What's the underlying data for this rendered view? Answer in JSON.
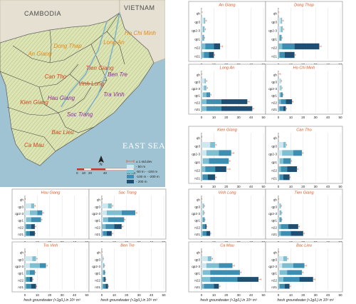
{
  "colors": {
    "depth_50": "#cfe8ef",
    "depth_50_100": "#7fbfd2",
    "depth_100_200": "#3d8eb0",
    "depth_200": "#1e4f72",
    "error_bar": "#e05a2a",
    "title": "#e0531a",
    "province_red": "#d6421f",
    "province_purple": "#8a2a9a",
    "land": "#d8e0b4",
    "sea": "#9fc3d3"
  },
  "map": {
    "countries": [
      "CAMBODIA",
      "VIETNAM"
    ],
    "sea_label": "EAST SEA",
    "north_label": "N",
    "scale": {
      "ticks": [
        "0",
        "10",
        "20",
        "40"
      ],
      "unit_label": "80 km"
    },
    "provinces": [
      {
        "name": "An Giang",
        "color": "orange"
      },
      {
        "name": "Dong Thap",
        "color": "orange"
      },
      {
        "name": "Long An",
        "color": "orange"
      },
      {
        "name": "Ho Chi Minh",
        "color": "orange"
      },
      {
        "name": "Tien Giang",
        "color": "red"
      },
      {
        "name": "Ben Tre",
        "color": "purple"
      },
      {
        "name": "Can Tho",
        "color": "red"
      },
      {
        "name": "Vinh Long",
        "color": "red"
      },
      {
        "name": "Hau Giang",
        "color": "purple"
      },
      {
        "name": "Tra Vinh",
        "color": "purple"
      },
      {
        "name": "Kien Giang",
        "color": "red"
      },
      {
        "name": "Soc Trang",
        "color": "purple"
      },
      {
        "name": "Bac Lieu",
        "color": "red"
      },
      {
        "name": "Ca Mau",
        "color": "red"
      }
    ]
  },
  "legend": {
    "error_label": "± 1 std.dev",
    "items": [
      {
        "label": "- 50 m",
        "color_key": "depth_50"
      },
      {
        "label": "-50 m - -100 m",
        "color_key": "depth_50_100"
      },
      {
        "label": "-100 m - -200 m",
        "color_key": "depth_100_200"
      },
      {
        "label": "- 200 m",
        "color_key": "depth_200"
      }
    ]
  },
  "chart_data": {
    "type": "bar",
    "orientation": "horizontal",
    "categories": [
      "qh",
      "qp3",
      "qp2-3",
      "qp1",
      "n22",
      "n21"
    ],
    "xlim": [
      0,
      50
    ],
    "xticks": [
      "0",
      "10",
      "20",
      "30",
      "40",
      "50"
    ],
    "xlabel": "fresh groundwater (<1g/L) in 10⁹ m³",
    "series_names": [
      "- 50 m",
      "-50 m - -100 m",
      "-100 m - -200 m",
      "- 200 m"
    ],
    "panels": [
      {
        "title": "An Giang",
        "values": [
          [
            0.3,
            0,
            0,
            0
          ],
          [
            2,
            1,
            0,
            0
          ],
          [
            1,
            1.5,
            0,
            0
          ],
          [
            0.5,
            1,
            0.5,
            0
          ],
          [
            0,
            3,
            7,
            5
          ],
          [
            0,
            2,
            4,
            4
          ]
        ],
        "errors": [
          0.3,
          1,
          0.8,
          0.5,
          2,
          0.8
        ]
      },
      {
        "title": "Dong Thap",
        "values": [
          [
            0.3,
            0,
            0,
            0
          ],
          [
            2,
            1,
            0,
            0
          ],
          [
            2,
            1.5,
            0,
            0
          ],
          [
            0.5,
            1,
            1,
            0
          ],
          [
            0,
            3,
            10,
            20
          ],
          [
            0,
            1,
            4,
            8
          ]
        ],
        "errors": [
          0.2,
          1,
          0.8,
          0.5,
          1.5,
          0.8
        ]
      },
      {
        "title": "Long An",
        "values": [
          [
            0.3,
            0,
            0,
            0
          ],
          [
            2.5,
            1,
            0,
            0
          ],
          [
            2,
            2,
            0,
            0
          ],
          [
            1,
            3,
            3,
            0
          ],
          [
            0,
            4,
            12,
            21
          ],
          [
            0,
            4,
            12,
            25
          ]
        ],
        "errors": [
          0.2,
          0.8,
          0.8,
          0.6,
          1.5,
          1
        ]
      },
      {
        "title": "Ho Chi Minh",
        "values": [
          [
            0.2,
            0,
            0,
            0
          ],
          [
            1.5,
            0.5,
            0,
            0
          ],
          [
            1.5,
            1,
            0,
            0
          ],
          [
            1,
            1,
            1.5,
            0
          ],
          [
            0,
            2,
            4,
            5
          ],
          [
            0,
            1,
            3,
            2
          ]
        ],
        "errors": [
          1.5,
          0.5,
          0.5,
          0.5,
          0.8,
          0.5
        ]
      },
      {
        "title": "Kien Giang",
        "values": [
          [
            0.2,
            0,
            0,
            0
          ],
          [
            7,
            4,
            0,
            0
          ],
          [
            4,
            10,
            10,
            0
          ],
          [
            1,
            5,
            16,
            0
          ],
          [
            0,
            3,
            8,
            9
          ],
          [
            0,
            1,
            4,
            6
          ]
        ],
        "errors": [
          0.2,
          1,
          2,
          1,
          3,
          1
        ]
      },
      {
        "title": "Can Tho",
        "values": [
          [
            0.2,
            0,
            0,
            0
          ],
          [
            4,
            2,
            0,
            0
          ],
          [
            3,
            9,
            7,
            0
          ],
          [
            1,
            3,
            6,
            0
          ],
          [
            0,
            2,
            5,
            8
          ],
          [
            0,
            1,
            3,
            5
          ]
        ],
        "errors": [
          0.2,
          0.8,
          1,
          0.6,
          0.8,
          0.5
        ]
      },
      {
        "title": "Hau Giang",
        "values": [
          [
            0.2,
            0,
            0,
            0
          ],
          [
            5,
            2.5,
            0,
            0
          ],
          [
            4,
            6,
            4,
            0
          ],
          [
            1,
            4,
            8,
            0
          ],
          [
            0,
            1,
            4,
            3
          ],
          [
            0,
            1,
            3,
            4
          ]
        ],
        "errors": [
          0.2,
          1,
          1,
          0.8,
          0.8,
          0.5
        ]
      },
      {
        "title": "Soc Trang",
        "values": [
          [
            0.2,
            0,
            0,
            0
          ],
          [
            5,
            3,
            0,
            0
          ],
          [
            4,
            12,
            11,
            0
          ],
          [
            1,
            4,
            13,
            0
          ],
          [
            0,
            3,
            7,
            6
          ],
          [
            0,
            1,
            3,
            4
          ]
        ],
        "errors": [
          0.2,
          0.8,
          1.2,
          0.8,
          1,
          0.8
        ]
      },
      {
        "title": "Vinh Long",
        "values": [
          [
            0.2,
            0,
            0,
            0
          ],
          [
            1,
            1,
            0,
            0
          ],
          [
            1,
            1,
            0,
            0
          ],
          [
            0.5,
            1,
            1,
            0
          ],
          [
            0,
            1,
            2,
            1
          ],
          [
            0,
            1,
            3,
            3
          ]
        ],
        "errors": [
          0.1,
          0.4,
          0.4,
          0.4,
          0.5,
          0.5
        ]
      },
      {
        "title": "Tien Giang",
        "values": [
          [
            0.2,
            0,
            0,
            0
          ],
          [
            1,
            1,
            0,
            0
          ],
          [
            1,
            1.5,
            0,
            0
          ],
          [
            0.5,
            1,
            1,
            0
          ],
          [
            0,
            2,
            6,
            8
          ],
          [
            0,
            2,
            8,
            10
          ]
        ],
        "errors": [
          0.1,
          0.4,
          0.4,
          0.4,
          0.8,
          0.8
        ]
      },
      {
        "title": "Tra Vinh",
        "values": [
          [
            0.2,
            0,
            0,
            0
          ],
          [
            6,
            3,
            0,
            0
          ],
          [
            4,
            8,
            5,
            0
          ],
          [
            1,
            3,
            4,
            0
          ],
          [
            0,
            1,
            3,
            2
          ],
          [
            0,
            1,
            4,
            4
          ]
        ],
        "errors": [
          0.2,
          0.8,
          1,
          0.6,
          0.6,
          0.6
        ]
      },
      {
        "title": "Ben Tre",
        "values": [
          [
            0.2,
            0,
            0,
            0
          ],
          [
            0.5,
            0.5,
            0,
            0
          ],
          [
            1,
            1,
            0,
            0
          ],
          [
            0.5,
            1,
            1,
            0
          ],
          [
            0,
            1,
            1,
            1
          ],
          [
            0,
            1,
            2,
            2
          ]
        ],
        "errors": [
          0.1,
          0.3,
          0.3,
          0.3,
          0.4,
          0.4
        ]
      },
      {
        "title": "Ca Mau",
        "values": [
          [
            0.2,
            0,
            0,
            0
          ],
          [
            5,
            3,
            0,
            0
          ],
          [
            4,
            10,
            11,
            0
          ],
          [
            1,
            6,
            24,
            0
          ],
          [
            0,
            7,
            22,
            17
          ],
          [
            0,
            2,
            8,
            4
          ]
        ],
        "errors": [
          0.2,
          1,
          1.5,
          1,
          2,
          1
        ]
      },
      {
        "title": "Bac Lieu",
        "values": [
          [
            0.2,
            0,
            0,
            0
          ],
          [
            4,
            3,
            0,
            0
          ],
          [
            3,
            9,
            9,
            0
          ],
          [
            1,
            6,
            12,
            0
          ],
          [
            0,
            4,
            13,
            11
          ],
          [
            0,
            1,
            4,
            4
          ]
        ],
        "errors": [
          0.2,
          0.8,
          1.5,
          1,
          1.5,
          0.8
        ]
      }
    ]
  }
}
